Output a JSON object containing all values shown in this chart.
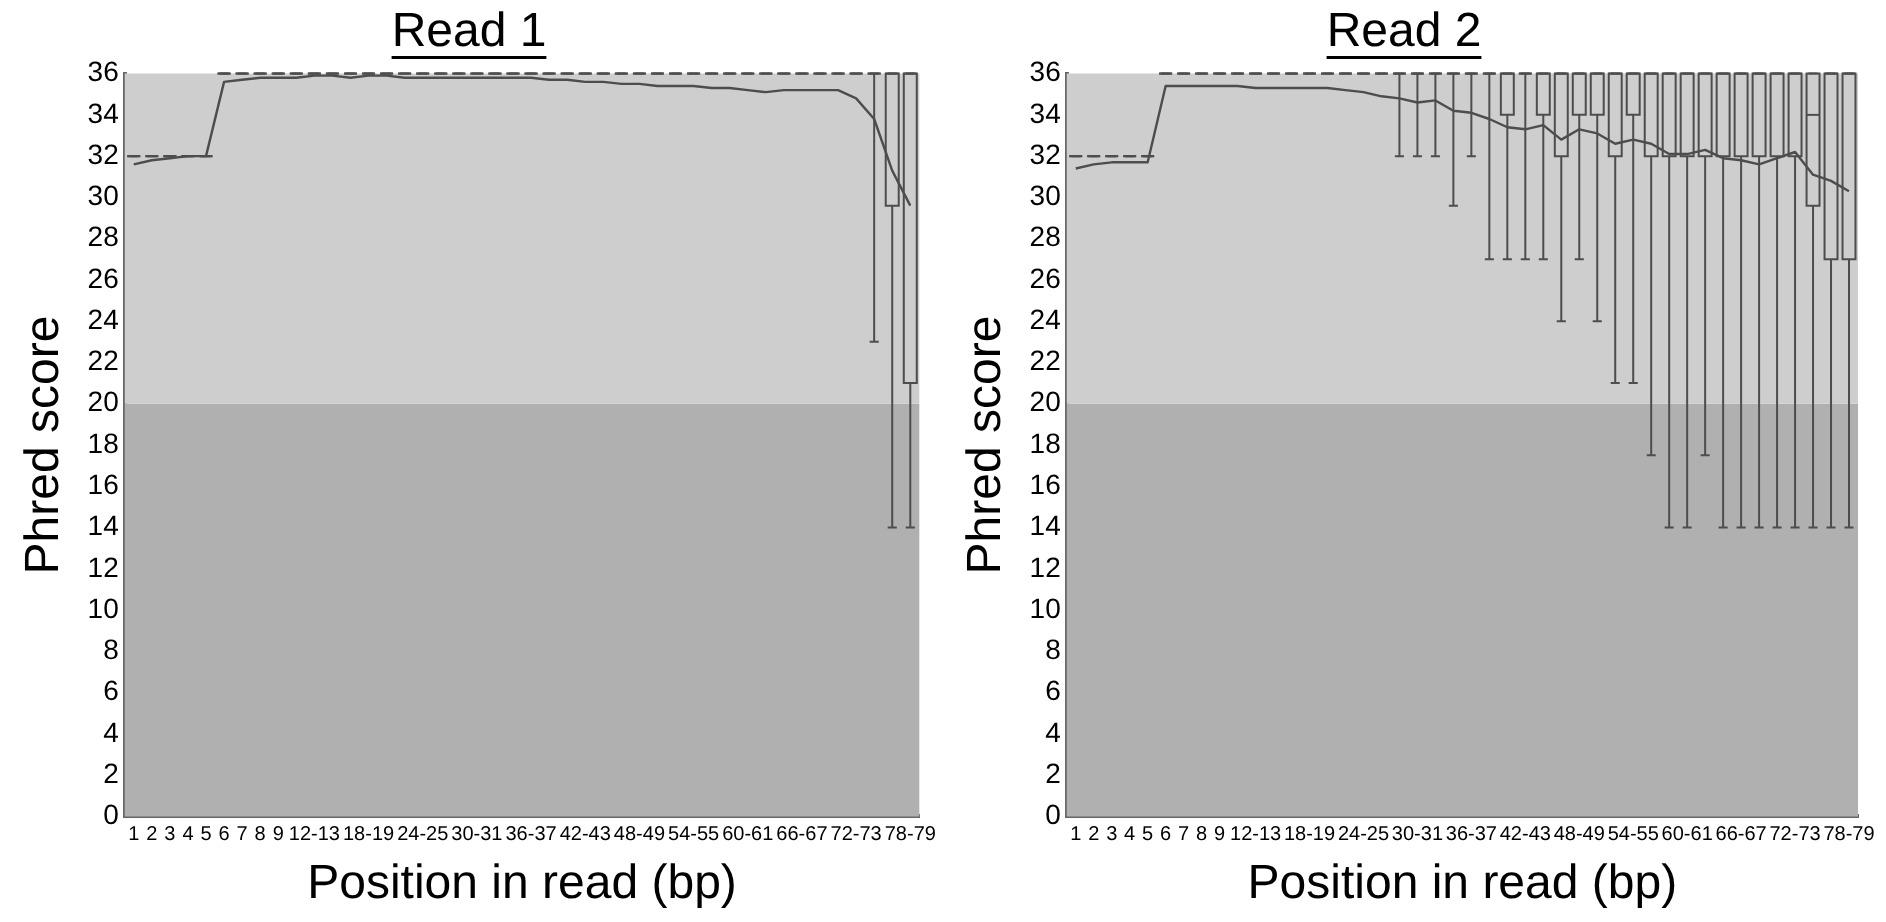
{
  "chart_data": [
    {
      "type": "box",
      "title": "Read 1",
      "xlabel": "Position in read (bp)",
      "ylabel": "Phred score",
      "categories": [
        "1",
        "2",
        "3",
        "4",
        "5",
        "6",
        "7",
        "8",
        "9",
        null,
        "12-13",
        null,
        null,
        "18-19",
        null,
        null,
        "24-25",
        null,
        null,
        "30-31",
        null,
        null,
        "36-37",
        null,
        null,
        "42-43",
        null,
        null,
        "48-49",
        null,
        null,
        "54-55",
        null,
        null,
        "60-61",
        null,
        null,
        "66-67",
        null,
        null,
        "72-73",
        null,
        null,
        "78-79"
      ],
      "ylim": [
        0,
        36
      ],
      "yticks": [
        0,
        2,
        4,
        6,
        8,
        10,
        12,
        14,
        16,
        18,
        20,
        22,
        24,
        26,
        28,
        30,
        32,
        34,
        36
      ],
      "bands": [
        {
          "axis": "y",
          "from": 0,
          "to": 20,
          "color": "#b0b0b0"
        },
        {
          "axis": "y",
          "from": 20,
          "to": 36,
          "color": "#cecece"
        }
      ],
      "series": [
        {
          "color": "#4d4d4d",
          "boxes": [
            {
              "low": 32,
              "q1": 32,
              "median": 32,
              "q3": 32,
              "high": 32
            },
            {
              "low": 32,
              "q1": 32,
              "median": 32,
              "q3": 32,
              "high": 32
            },
            {
              "low": 32,
              "q1": 32,
              "median": 32,
              "q3": 32,
              "high": 32
            },
            {
              "low": 32,
              "q1": 32,
              "median": 32,
              "q3": 32,
              "high": 32
            },
            {
              "low": 32,
              "q1": 32,
              "median": 32,
              "q3": 32,
              "high": 32
            },
            {
              "low": 36,
              "q1": 36,
              "median": 36,
              "q3": 36,
              "high": 36
            },
            {
              "low": 36,
              "q1": 36,
              "median": 36,
              "q3": 36,
              "high": 36
            },
            {
              "low": 36,
              "q1": 36,
              "median": 36,
              "q3": 36,
              "high": 36
            },
            {
              "low": 36,
              "q1": 36,
              "median": 36,
              "q3": 36,
              "high": 36
            },
            {
              "low": 36,
              "q1": 36,
              "median": 36,
              "q3": 36,
              "high": 36
            },
            {
              "low": 36,
              "q1": 36,
              "median": 36,
              "q3": 36,
              "high": 36
            },
            {
              "low": 36,
              "q1": 36,
              "median": 36,
              "q3": 36,
              "high": 36
            },
            {
              "low": 36,
              "q1": 36,
              "median": 36,
              "q3": 36,
              "high": 36
            },
            {
              "low": 36,
              "q1": 36,
              "median": 36,
              "q3": 36,
              "high": 36
            },
            {
              "low": 36,
              "q1": 36,
              "median": 36,
              "q3": 36,
              "high": 36
            },
            {
              "low": 36,
              "q1": 36,
              "median": 36,
              "q3": 36,
              "high": 36
            },
            {
              "low": 36,
              "q1": 36,
              "median": 36,
              "q3": 36,
              "high": 36
            },
            {
              "low": 36,
              "q1": 36,
              "median": 36,
              "q3": 36,
              "high": 36
            },
            {
              "low": 36,
              "q1": 36,
              "median": 36,
              "q3": 36,
              "high": 36
            },
            {
              "low": 36,
              "q1": 36,
              "median": 36,
              "q3": 36,
              "high": 36
            },
            {
              "low": 36,
              "q1": 36,
              "median": 36,
              "q3": 36,
              "high": 36
            },
            {
              "low": 36,
              "q1": 36,
              "median": 36,
              "q3": 36,
              "high": 36
            },
            {
              "low": 36,
              "q1": 36,
              "median": 36,
              "q3": 36,
              "high": 36
            },
            {
              "low": 36,
              "q1": 36,
              "median": 36,
              "q3": 36,
              "high": 36
            },
            {
              "low": 36,
              "q1": 36,
              "median": 36,
              "q3": 36,
              "high": 36
            },
            {
              "low": 36,
              "q1": 36,
              "median": 36,
              "q3": 36,
              "high": 36
            },
            {
              "low": 36,
              "q1": 36,
              "median": 36,
              "q3": 36,
              "high": 36
            },
            {
              "low": 36,
              "q1": 36,
              "median": 36,
              "q3": 36,
              "high": 36
            },
            {
              "low": 36,
              "q1": 36,
              "median": 36,
              "q3": 36,
              "high": 36
            },
            {
              "low": 36,
              "q1": 36,
              "median": 36,
              "q3": 36,
              "high": 36
            },
            {
              "low": 36,
              "q1": 36,
              "median": 36,
              "q3": 36,
              "high": 36
            },
            {
              "low": 36,
              "q1": 36,
              "median": 36,
              "q3": 36,
              "high": 36
            },
            {
              "low": 36,
              "q1": 36,
              "median": 36,
              "q3": 36,
              "high": 36
            },
            {
              "low": 36,
              "q1": 36,
              "median": 36,
              "q3": 36,
              "high": 36
            },
            {
              "low": 36,
              "q1": 36,
              "median": 36,
              "q3": 36,
              "high": 36
            },
            {
              "low": 36,
              "q1": 36,
              "median": 36,
              "q3": 36,
              "high": 36
            },
            {
              "low": 36,
              "q1": 36,
              "median": 36,
              "q3": 36,
              "high": 36
            },
            {
              "low": 36,
              "q1": 36,
              "median": 36,
              "q3": 36,
              "high": 36
            },
            {
              "low": 36,
              "q1": 36,
              "median": 36,
              "q3": 36,
              "high": 36
            },
            {
              "low": 36,
              "q1": 36,
              "median": 36,
              "q3": 36,
              "high": 36
            },
            {
              "low": 36,
              "q1": 36,
              "median": 36,
              "q3": 36,
              "high": 36
            },
            {
              "low": 23,
              "q1": 36,
              "median": 36,
              "q3": 36,
              "high": 36
            },
            {
              "low": 14,
              "q1": 29.6,
              "median": 36,
              "q3": 36,
              "high": 36
            },
            {
              "low": 14,
              "q1": 21,
              "median": 36,
              "q3": 36,
              "high": 36
            }
          ]
        },
        {
          "type": "line",
          "color": "#4d4d4d",
          "values": [
            31.6,
            31.8,
            31.9,
            32,
            32,
            35.6,
            35.7,
            35.8,
            35.8,
            35.8,
            35.9,
            35.9,
            35.8,
            35.9,
            35.9,
            35.8,
            35.8,
            35.8,
            35.8,
            35.8,
            35.8,
            35.8,
            35.8,
            35.7,
            35.7,
            35.6,
            35.6,
            35.5,
            35.5,
            35.4,
            35.4,
            35.4,
            35.3,
            35.3,
            35.2,
            35.1,
            35.2,
            35.2,
            35.2,
            35.2,
            34.8,
            33.8,
            31.3,
            29.6
          ]
        }
      ]
    },
    {
      "type": "box",
      "title": "Read 2",
      "xlabel": "Position in read (bp)",
      "ylabel": "Phred score",
      "categories": [
        "1",
        "2",
        "3",
        "4",
        "5",
        "6",
        "7",
        "8",
        "9",
        null,
        "12-13",
        null,
        null,
        "18-19",
        null,
        null,
        "24-25",
        null,
        null,
        "30-31",
        null,
        null,
        "36-37",
        null,
        null,
        "42-43",
        null,
        null,
        "48-49",
        null,
        null,
        "54-55",
        null,
        null,
        "60-61",
        null,
        null,
        "66-67",
        null,
        null,
        "72-73",
        null,
        null,
        "78-79"
      ],
      "ylim": [
        0,
        36
      ],
      "yticks": [
        0,
        2,
        4,
        6,
        8,
        10,
        12,
        14,
        16,
        18,
        20,
        22,
        24,
        26,
        28,
        30,
        32,
        34,
        36
      ],
      "bands": [
        {
          "axis": "y",
          "from": 0,
          "to": 20,
          "color": "#b0b0b0"
        },
        {
          "axis": "y",
          "from": 20,
          "to": 36,
          "color": "#cecece"
        }
      ],
      "series": [
        {
          "color": "#4d4d4d",
          "boxes": [
            {
              "low": 32,
              "q1": 32,
              "median": 32,
              "q3": 32,
              "high": 32
            },
            {
              "low": 32,
              "q1": 32,
              "median": 32,
              "q3": 32,
              "high": 32
            },
            {
              "low": 32,
              "q1": 32,
              "median": 32,
              "q3": 32,
              "high": 32
            },
            {
              "low": 32,
              "q1": 32,
              "median": 32,
              "q3": 32,
              "high": 32
            },
            {
              "low": 32,
              "q1": 32,
              "median": 32,
              "q3": 32,
              "high": 32
            },
            {
              "low": 36,
              "q1": 36,
              "median": 36,
              "q3": 36,
              "high": 36
            },
            {
              "low": 36,
              "q1": 36,
              "median": 36,
              "q3": 36,
              "high": 36
            },
            {
              "low": 36,
              "q1": 36,
              "median": 36,
              "q3": 36,
              "high": 36
            },
            {
              "low": 36,
              "q1": 36,
              "median": 36,
              "q3": 36,
              "high": 36
            },
            {
              "low": 36,
              "q1": 36,
              "median": 36,
              "q3": 36,
              "high": 36
            },
            {
              "low": 36,
              "q1": 36,
              "median": 36,
              "q3": 36,
              "high": 36
            },
            {
              "low": 36,
              "q1": 36,
              "median": 36,
              "q3": 36,
              "high": 36
            },
            {
              "low": 36,
              "q1": 36,
              "median": 36,
              "q3": 36,
              "high": 36
            },
            {
              "low": 36,
              "q1": 36,
              "median": 36,
              "q3": 36,
              "high": 36
            },
            {
              "low": 36,
              "q1": 36,
              "median": 36,
              "q3": 36,
              "high": 36
            },
            {
              "low": 36,
              "q1": 36,
              "median": 36,
              "q3": 36,
              "high": 36
            },
            {
              "low": 36,
              "q1": 36,
              "median": 36,
              "q3": 36,
              "high": 36
            },
            {
              "low": 36,
              "q1": 36,
              "median": 36,
              "q3": 36,
              "high": 36
            },
            {
              "low": 32,
              "q1": 36,
              "median": 36,
              "q3": 36,
              "high": 36
            },
            {
              "low": 32,
              "q1": 36,
              "median": 36,
              "q3": 36,
              "high": 36
            },
            {
              "low": 32,
              "q1": 36,
              "median": 36,
              "q3": 36,
              "high": 36
            },
            {
              "low": 29.6,
              "q1": 36,
              "median": 36,
              "q3": 36,
              "high": 36
            },
            {
              "low": 32,
              "q1": 36,
              "median": 36,
              "q3": 36,
              "high": 36
            },
            {
              "low": 27,
              "q1": 36,
              "median": 36,
              "q3": 36,
              "high": 36
            },
            {
              "low": 27,
              "q1": 34,
              "median": 36,
              "q3": 36,
              "high": 36
            },
            {
              "low": 27,
              "q1": 36,
              "median": 36,
              "q3": 36,
              "high": 36
            },
            {
              "low": 27,
              "q1": 34,
              "median": 36,
              "q3": 36,
              "high": 36
            },
            {
              "low": 24,
              "q1": 32,
              "median": 36,
              "q3": 36,
              "high": 36
            },
            {
              "low": 27,
              "q1": 34,
              "median": 36,
              "q3": 36,
              "high": 36
            },
            {
              "low": 24,
              "q1": 34,
              "median": 36,
              "q3": 36,
              "high": 36
            },
            {
              "low": 21,
              "q1": 32,
              "median": 36,
              "q3": 36,
              "high": 36
            },
            {
              "low": 21,
              "q1": 34,
              "median": 36,
              "q3": 36,
              "high": 36
            },
            {
              "low": 17.5,
              "q1": 32,
              "median": 36,
              "q3": 36,
              "high": 36
            },
            {
              "low": 14,
              "q1": 32,
              "median": 36,
              "q3": 36,
              "high": 36
            },
            {
              "low": 14,
              "q1": 32,
              "median": 36,
              "q3": 36,
              "high": 36
            },
            {
              "low": 17.5,
              "q1": 32,
              "median": 36,
              "q3": 36,
              "high": 36
            },
            {
              "low": 14,
              "q1": 32,
              "median": 36,
              "q3": 36,
              "high": 36
            },
            {
              "low": 14,
              "q1": 32,
              "median": 36,
              "q3": 36,
              "high": 36
            },
            {
              "low": 14,
              "q1": 32,
              "median": 36,
              "q3": 36,
              "high": 36
            },
            {
              "low": 14,
              "q1": 32,
              "median": 36,
              "q3": 36,
              "high": 36
            },
            {
              "low": 14,
              "q1": 32,
              "median": 36,
              "q3": 36,
              "high": 36
            },
            {
              "low": 14,
              "q1": 29.6,
              "median": 34,
              "q3": 36,
              "high": 36
            },
            {
              "low": 14,
              "q1": 27,
              "median": 36,
              "q3": 36,
              "high": 36
            },
            {
              "low": 14,
              "q1": 27,
              "median": 36,
              "q3": 36,
              "high": 36
            }
          ]
        },
        {
          "type": "line",
          "color": "#4d4d4d",
          "values": [
            31.4,
            31.6,
            31.7,
            31.7,
            31.7,
            35.4,
            35.4,
            35.4,
            35.4,
            35.4,
            35.3,
            35.3,
            35.3,
            35.3,
            35.3,
            35.2,
            35.1,
            34.9,
            34.8,
            34.6,
            34.7,
            34.2,
            34.1,
            33.8,
            33.4,
            33.3,
            33.5,
            32.8,
            33.3,
            33.1,
            32.6,
            32.8,
            32.6,
            32.1,
            32.1,
            32.3,
            31.9,
            31.8,
            31.6,
            31.9,
            32.2,
            31.1,
            30.8,
            30.3
          ]
        }
      ]
    }
  ]
}
